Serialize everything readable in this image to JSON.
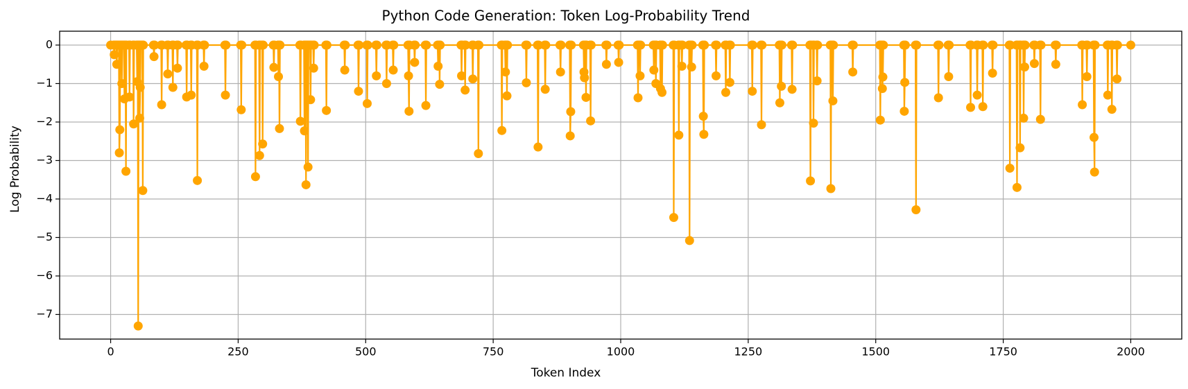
{
  "chart_data": {
    "type": "line",
    "title": "Python Code Generation: Token Log-Probability Trend",
    "x_label": "Token Index",
    "y_label": "Log Probability",
    "color": "#ffa500",
    "grid": true,
    "xlim": [
      -100,
      2100
    ],
    "ylim": [
      -7.64,
      0.36
    ],
    "xticks": [
      0,
      250,
      500,
      750,
      1000,
      1250,
      1500,
      1750,
      2000
    ],
    "yticks": [
      0,
      {
        "value": -1,
        "label": "−1"
      },
      {
        "value": -2,
        "label": "−2"
      },
      {
        "value": -3,
        "label": "−3"
      },
      {
        "value": -4,
        "label": "−4"
      },
      {
        "value": -5,
        "label": "−5"
      },
      {
        "value": -6,
        "label": "−6"
      },
      {
        "value": -7,
        "label": "−7"
      }
    ],
    "x": [
      0,
      6,
      7,
      8,
      11,
      12,
      13,
      16,
      17,
      18,
      19,
      21,
      22,
      23,
      26,
      27,
      28,
      29,
      30,
      31,
      36,
      37,
      38,
      44,
      45,
      46,
      51,
      52,
      53,
      54,
      55,
      56,
      57,
      58,
      59,
      62,
      63,
      64,
      84,
      85,
      86,
      99,
      100,
      101,
      111,
      112,
      113,
      121,
      122,
      123,
      130,
      131,
      132,
      148,
      149,
      150,
      157,
      158,
      159,
      169,
      170,
      171,
      182,
      183,
      184,
      224,
      225,
      226,
      255,
      256,
      257,
      283,
      284,
      285,
      291,
      292,
      293,
      297,
      298,
      299,
      319,
      320,
      321,
      328,
      329,
      330,
      331,
      332,
      371,
      372,
      373,
      379,
      380,
      381,
      382,
      383,
      384,
      386,
      387,
      388,
      391,
      392,
      393,
      397,
      398,
      399,
      422,
      423,
      424,
      458,
      459,
      460,
      485,
      486,
      487,
      502,
      503,
      504,
      520,
      521,
      522,
      540,
      541,
      542,
      553,
      554,
      555,
      583,
      584,
      585,
      586,
      595,
      596,
      597,
      617,
      618,
      619,
      641,
      642,
      643,
      644,
      645,
      646,
      687,
      688,
      689,
      694,
      695,
      696,
      709,
      710,
      711,
      720,
      721,
      722,
      766,
      767,
      768,
      773,
      774,
      775,
      776,
      777,
      778,
      814,
      815,
      816,
      837,
      838,
      839,
      851,
      852,
      853,
      881,
      882,
      883,
      900,
      901,
      902,
      903,
      927,
      928,
      929,
      930,
      931,
      932,
      933,
      940,
      941,
      942,
      971,
      972,
      973,
      995,
      996,
      997,
      1033,
      1034,
      1035,
      1037,
      1038,
      1039,
      1064,
      1065,
      1066,
      1068,
      1069,
      1070,
      1077,
      1078,
      1079,
      1080,
      1081,
      1082,
      1103,
      1104,
      1105,
      1113,
      1114,
      1115,
      1119,
      1120,
      1121,
      1134,
      1135,
      1136,
      1138,
      1139,
      1140,
      1161,
      1162,
      1163,
      1164,
      1186,
      1187,
      1188,
      1205,
      1206,
      1207,
      1213,
      1214,
      1215,
      1257,
      1258,
      1259,
      1275,
      1276,
      1277,
      1311,
      1312,
      1313,
      1314,
      1315,
      1316,
      1335,
      1336,
      1337,
      1371,
      1372,
      1373,
      1377,
      1378,
      1379,
      1384,
      1385,
      1386,
      1411,
      1412,
      1413,
      1415,
      1416,
      1417,
      1454,
      1455,
      1456,
      1508,
      1509,
      1510,
      1512,
      1513,
      1514,
      1515,
      1555,
      1556,
      1557,
      1558,
      1578,
      1579,
      1580,
      1622,
      1623,
      1624,
      1642,
      1643,
      1644,
      1685,
      1686,
      1687,
      1698,
      1699,
      1700,
      1709,
      1710,
      1711,
      1728,
      1729,
      1730,
      1762,
      1763,
      1764,
      1776,
      1777,
      1778,
      1782,
      1783,
      1784,
      1789,
      1790,
      1791,
      1792,
      1793,
      1810,
      1811,
      1812,
      1822,
      1823,
      1824,
      1852,
      1853,
      1854,
      1904,
      1905,
      1906,
      1913,
      1914,
      1915,
      1927,
      1928,
      1929,
      1930,
      1954,
      1955,
      1956,
      1962,
      1963,
      1964,
      1972,
      1973,
      1974,
      2000
    ],
    "values": [
      0,
      0,
      -0.25,
      0,
      0,
      -0.5,
      0,
      0,
      -2.8,
      -2.2,
      0,
      0,
      -1.0,
      0,
      0,
      -1.4,
      0,
      0,
      -3.28,
      0,
      0,
      -1.35,
      0,
      0,
      -2.05,
      0,
      0,
      -0.95,
      0,
      -7.3,
      0,
      0,
      -1.9,
      -1.1,
      0,
      0,
      -3.78,
      0,
      0,
      -0.3,
      0,
      0,
      -1.55,
      0,
      0,
      -0.75,
      0,
      0,
      -1.1,
      0,
      0,
      -0.6,
      0,
      0,
      -1.35,
      0,
      0,
      -1.3,
      0,
      0,
      -3.52,
      0,
      0,
      -0.55,
      0,
      0,
      -1.3,
      0,
      0,
      -1.68,
      0,
      0,
      -3.42,
      0,
      0,
      -2.87,
      0,
      0,
      -2.57,
      0,
      0,
      -0.58,
      0,
      0,
      -0.82,
      0,
      -2.17,
      0,
      0,
      -1.98,
      0,
      0,
      -2.23,
      0,
      0,
      -3.63,
      0,
      0,
      -3.17,
      0,
      0,
      -1.42,
      0,
      0,
      -0.6,
      0,
      0,
      -1.7,
      0,
      0,
      -0.65,
      0,
      0,
      -1.2,
      0,
      0,
      -1.52,
      0,
      0,
      -0.8,
      0,
      0,
      -1.0,
      0,
      0,
      -0.65,
      0,
      0,
      -0.8,
      -1.72,
      0,
      0,
      -0.45,
      0,
      0,
      -1.57,
      0,
      0,
      -0.55,
      0,
      0,
      -1.02,
      0,
      0,
      -0.8,
      0,
      0,
      -1.17,
      0,
      0,
      -0.88,
      0,
      0,
      -2.82,
      0,
      0,
      -2.22,
      0,
      0,
      -0.7,
      0,
      0,
      -1.32,
      0,
      0,
      -0.98,
      0,
      0,
      -2.65,
      0,
      0,
      -1.15,
      0,
      0,
      -0.7,
      0,
      0,
      -2.36,
      -1.73,
      0,
      0,
      -0.7,
      -0.85,
      0,
      0,
      -1.36,
      0,
      0,
      -1.97,
      0,
      0,
      -0.5,
      0,
      0,
      -0.45,
      0,
      0,
      -1.37,
      0,
      0,
      -0.8,
      0,
      0,
      -0.65,
      0,
      0,
      -1.0,
      0,
      0,
      -1.13,
      0,
      0,
      -1.23,
      0,
      0,
      -4.48,
      0,
      0,
      -2.34,
      0,
      0,
      -0.55,
      0,
      0,
      -5.08,
      0,
      0,
      -0.57,
      0,
      0,
      -1.85,
      -2.32,
      0,
      0,
      -0.8,
      0,
      0,
      -1.23,
      0,
      0,
      -0.97,
      0,
      0,
      -1.2,
      0,
      0,
      -2.07,
      0,
      0,
      -1.5,
      0,
      0,
      -1.07,
      0,
      0,
      -1.15,
      0,
      0,
      -3.53,
      0,
      0,
      -2.03,
      0,
      0,
      -0.93,
      0,
      0,
      -3.73,
      0,
      0,
      -1.45,
      0,
      0,
      -0.7,
      0,
      0,
      -1.95,
      0,
      0,
      -1.13,
      -0.83,
      0,
      0,
      -1.72,
      -0.97,
      0,
      0,
      -4.28,
      0,
      0,
      -1.37,
      0,
      0,
      -0.82,
      0,
      0,
      -1.62,
      0,
      0,
      -1.3,
      0,
      0,
      -1.6,
      0,
      0,
      -0.73,
      0,
      0,
      -3.2,
      0,
      0,
      -3.7,
      0,
      0,
      -2.67,
      0,
      0,
      -1.9,
      0,
      -0.57,
      0,
      0,
      -0.48,
      0,
      0,
      -1.93,
      0,
      0,
      -0.5,
      0,
      0,
      -1.55,
      0,
      0,
      -0.82,
      0,
      0,
      -2.4,
      -3.3,
      0,
      0,
      -1.3,
      0,
      0,
      -1.67,
      0,
      0,
      -0.88,
      0,
      0
    ]
  }
}
